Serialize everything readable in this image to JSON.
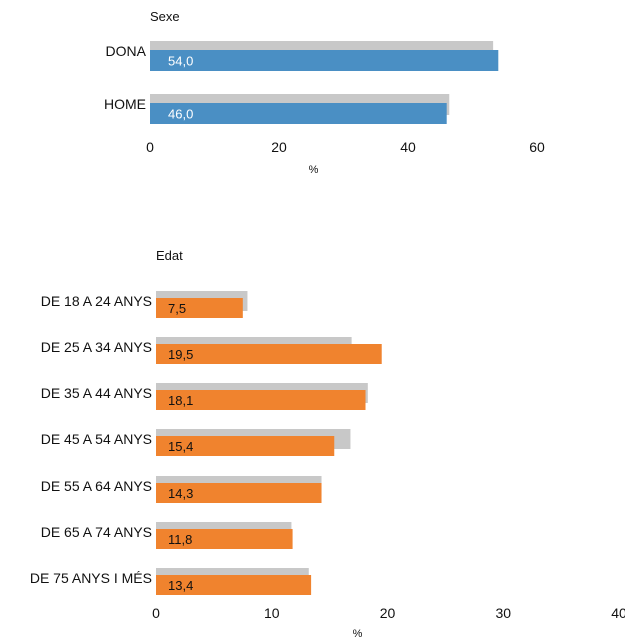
{
  "chart_data": [
    {
      "type": "bar",
      "orientation": "horizontal",
      "title": "Sexe",
      "xlabel": "%",
      "xlim": [
        0,
        60
      ],
      "xticks": [
        0,
        20,
        40,
        60
      ],
      "categories": [
        "DONA",
        "HOME"
      ],
      "series": [
        {
          "values": [
            53.2,
            46.4
          ],
          "color": "#c8c8c8"
        },
        {
          "values": [
            54.0,
            46.0
          ],
          "value_labels": [
            "54,0",
            "46,0"
          ],
          "color": "#4a8fc4",
          "label_color": "#ffffff"
        }
      ]
    },
    {
      "type": "bar",
      "orientation": "horizontal",
      "title": "Edat",
      "xlabel": "%",
      "xlim": [
        0,
        40
      ],
      "xticks": [
        0,
        10,
        20,
        30,
        40
      ],
      "categories": [
        "DE 18 A 24 ANYS",
        "DE 25 A 34 ANYS",
        "DE 35 A 44 ANYS",
        "DE 45 A 54 ANYS",
        "DE 55 A 64 ANYS",
        "DE 65 A 74 ANYS",
        "DE 75 ANYS I MÉS"
      ],
      "series": [
        {
          "values": [
            7.9,
            16.9,
            18.3,
            16.8,
            14.3,
            11.7,
            13.2
          ],
          "color": "#c8c8c8"
        },
        {
          "values": [
            7.5,
            19.5,
            18.1,
            15.4,
            14.3,
            11.8,
            13.4
          ],
          "value_labels": [
            "7,5",
            "19,5",
            "18,1",
            "15,4",
            "14,3",
            "11,8",
            "13,4"
          ],
          "color": "#f0832e",
          "label_color": "#111111"
        }
      ]
    }
  ]
}
